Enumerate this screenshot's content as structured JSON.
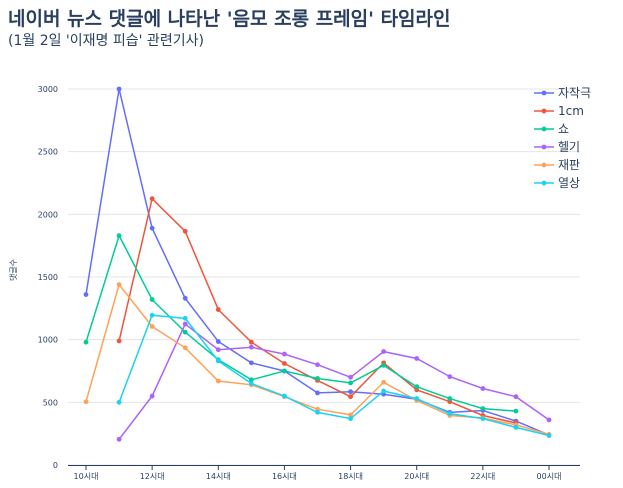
{
  "title": "네이버 뉴스 댓글에 나타난 '음모 조롱 프레임' 타임라인",
  "subtitle": "(1월 2일 '이재명 피습' 관련기사)",
  "chart_data": {
    "type": "line",
    "title": "네이버 뉴스 댓글에 나타난 '음모 조롱 프레임' 타임라인",
    "subtitle": "(1월 2일 '이재명 피습' 관련기사)",
    "xlabel": "",
    "ylabel": "댓글수",
    "ylim": [
      0,
      3100
    ],
    "yticks": [
      0,
      500,
      1000,
      1500,
      2000,
      2500,
      3000
    ],
    "x": [
      "10시대",
      "11시대",
      "12시대",
      "13시대",
      "14시대",
      "15시대",
      "16시대",
      "17시대",
      "18시대",
      "19시대",
      "20시대",
      "21시대",
      "22시대",
      "23시대",
      "00시대"
    ],
    "xtick_labels": [
      "10시대",
      "12시대",
      "14시대",
      "16시대",
      "18시대",
      "20시대",
      "22시대",
      "00시대"
    ],
    "grid": true,
    "legend_position": "top-right",
    "series": [
      {
        "name": "자작극",
        "color": "#636efa",
        "values": [
          1360,
          3000,
          1890,
          1330,
          985,
          815,
          750,
          575,
          585,
          565,
          525,
          420,
          435,
          350,
          240
        ]
      },
      {
        "name": "1cm",
        "color": "#ef553b",
        "values": [
          null,
          990,
          2125,
          1865,
          1240,
          980,
          810,
          675,
          545,
          815,
          600,
          505,
          395,
          335,
          null
        ]
      },
      {
        "name": "쇼",
        "color": "#00cc96",
        "values": [
          980,
          1830,
          1320,
          1060,
          840,
          680,
          750,
          690,
          655,
          795,
          625,
          530,
          450,
          430,
          null
        ]
      },
      {
        "name": "헬기",
        "color": "#ab63fa",
        "values": [
          null,
          205,
          550,
          1125,
          920,
          940,
          885,
          800,
          700,
          905,
          850,
          705,
          610,
          545,
          360
        ]
      },
      {
        "name": "재판",
        "color": "#ffa15a",
        "values": [
          505,
          1440,
          1105,
          935,
          670,
          640,
          545,
          445,
          400,
          660,
          515,
          395,
          375,
          320,
          245
        ]
      },
      {
        "name": "열상",
        "color": "#19d3f3",
        "values": [
          null,
          500,
          1195,
          1170,
          830,
          650,
          550,
          420,
          370,
          590,
          530,
          410,
          370,
          300,
          235
        ]
      }
    ]
  }
}
